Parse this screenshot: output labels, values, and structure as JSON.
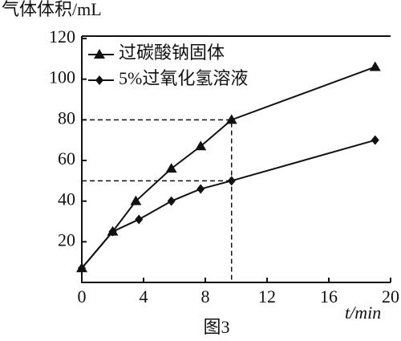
{
  "chart_data": {
    "type": "line",
    "y_label": "气体体积/mL",
    "x_label": "t/min",
    "caption": "图3",
    "xlim": [
      0,
      20
    ],
    "xticks": [
      0,
      4,
      8,
      12,
      16,
      20
    ],
    "ylim": [
      0,
      120
    ],
    "yticks": [
      20,
      40,
      60,
      80,
      100,
      120
    ],
    "series": [
      {
        "name": "过碳酸钠固体",
        "color": "#111111",
        "marker": "triangle",
        "x": [
          0,
          2,
          3.5,
          5.8,
          7.7,
          9.7,
          19
        ],
        "values": [
          7,
          25,
          40,
          56,
          67,
          80,
          106
        ]
      },
      {
        "name": "5%过氧化氢溶液",
        "color": "#111111",
        "marker": "diamond",
        "x": [
          0,
          2,
          3.7,
          5.8,
          7.7,
          9.7,
          19
        ],
        "values": [
          7,
          25,
          31,
          40,
          46,
          50,
          70
        ]
      }
    ]
  }
}
